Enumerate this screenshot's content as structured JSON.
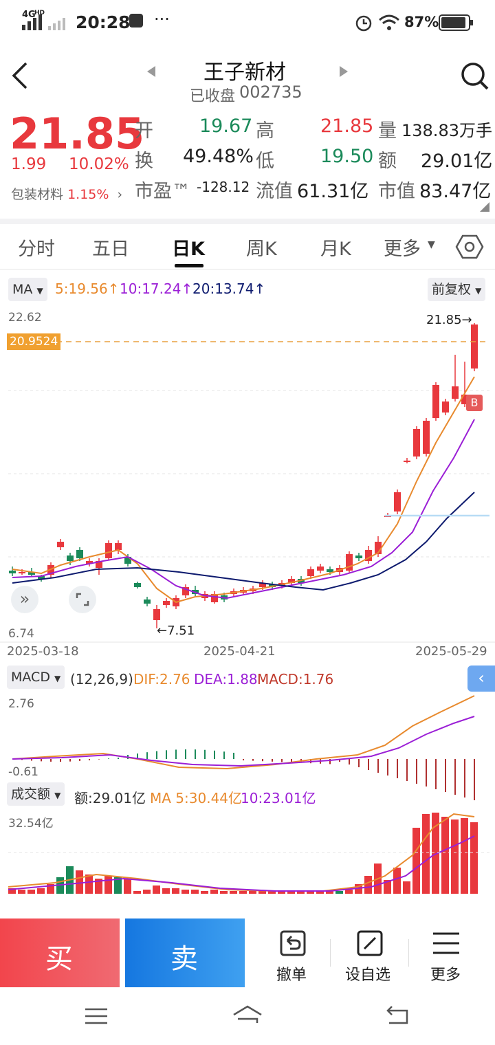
{
  "status_bar": {
    "network": "4G",
    "network_sup": "HD",
    "time": "20:28",
    "more": "···",
    "battery": "87%"
  },
  "header": {
    "name": "王子新材",
    "status": "已收盘",
    "code": "002735"
  },
  "quote": {
    "price": "21.85",
    "change": "1.99",
    "change_pct": "10.02%",
    "sector_name": "包装材料",
    "sector_pct": "1.15%",
    "open_label": "开",
    "open": "19.67",
    "high_label": "高",
    "high": "21.85",
    "volume_label": "量",
    "volume": "138.83万手",
    "turnover_label": "换",
    "turnover": "49.48%",
    "low_label": "低",
    "low": "19.50",
    "amount_label": "额",
    "amount": "29.01亿",
    "pe_label": "市盈™",
    "pe": "-128.12",
    "float_cap_label": "流值",
    "float_cap": "61.31亿",
    "mkt_cap_label": "市值",
    "mkt_cap": "83.47亿"
  },
  "tabs": [
    "分时",
    "五日",
    "日K",
    "周K",
    "月K",
    "更多"
  ],
  "active_tab": "日K",
  "ma_bar": {
    "selector": "MA",
    "ma5": "5:19.56↑",
    "ma10": "10:17.24↑",
    "ma20": "20:13.74↑",
    "adjust": "前复权"
  },
  "kline": {
    "y_max_label": "22.62",
    "y_min_label": "6.74",
    "price_line_label": "20.9524",
    "high_marker": "21.85→",
    "low_marker": "←7.51",
    "buy_marker": "B",
    "dates": [
      "2025-03-18",
      "2025-04-21",
      "2025-05-29"
    ]
  },
  "macd": {
    "selector": "MACD",
    "params": "(12,26,9)",
    "dif": "DIF:2.76",
    "dea": "DEA:1.88",
    "macd": "MACD:1.76",
    "y_max": "2.76",
    "y_min": "-0.61"
  },
  "volume_panel": {
    "selector": "成交额",
    "amount": "额:29.01亿",
    "ma5": "MA 5:30.44亿",
    "ma10": "10:23.01亿",
    "y_max": "32.54亿"
  },
  "bottom_bar": {
    "buy": "买",
    "sell": "卖",
    "cancel": "撤单",
    "watchlist": "设自选",
    "more": "更多"
  },
  "colors": {
    "up": "#e8383d",
    "down": "#1b8a5a",
    "ma5": "#e88a2e",
    "ma10": "#9b1fd6",
    "ma20": "#0d1a6e",
    "sell": "#1e86e8"
  }
}
